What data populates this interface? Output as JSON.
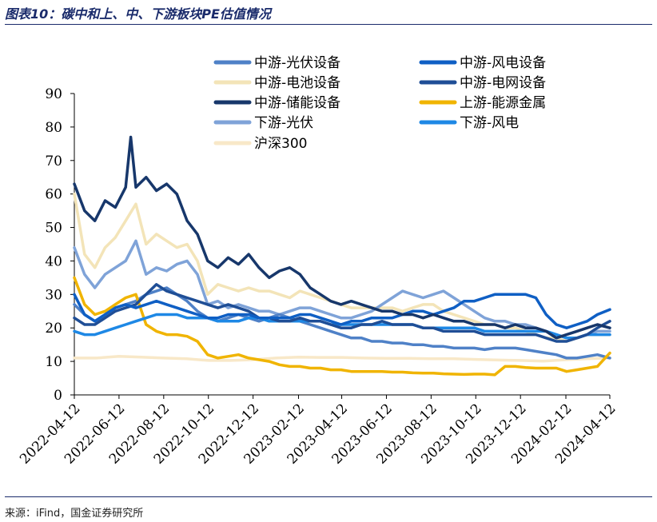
{
  "header": {
    "title": "图表10：碳中和上、中、下游板块PE估值情况"
  },
  "footer": {
    "source": "来源：iFind，国金证券研究所"
  },
  "colors": {
    "midPV": "#4f81c7",
    "midWind": "#0f5fc4",
    "midBattery": "#f3e4b8",
    "midGrid": "#1f4e96",
    "midStorage": "#17376b",
    "upEnergyMetal": "#f0b400",
    "downPV": "#7fa3d8",
    "downWind": "#1e88e5",
    "hs300": "#f8e8c8"
  },
  "chart_data": {
    "type": "line",
    "title": "碳中和上、中、下游板块PE估值情况",
    "xlabel": "",
    "ylabel": "",
    "ylim": [
      0,
      90
    ],
    "yticks": [
      "0",
      "10",
      "20",
      "30",
      "40",
      "50",
      "60",
      "70",
      "80",
      "90"
    ],
    "xlim": [
      "2022-04-12",
      "2024-04-12"
    ],
    "xticks": [
      "2022-04-12",
      "2022-06-12",
      "2022-08-12",
      "2022-10-12",
      "2022-12-12",
      "2023-02-12",
      "2023-04-12",
      "2023-06-12",
      "2023-08-12",
      "2023-10-12",
      "2023-12-12",
      "2024-02-12",
      "2024-04-12"
    ],
    "grid": false,
    "legend_position": "top",
    "series": [
      {
        "name": "中游-光伏设备",
        "color": "#4f81c7",
        "width": 3.5,
        "x": [
          "2022-04-12",
          "2022-04-26",
          "2022-05-10",
          "2022-05-24",
          "2022-06-07",
          "2022-06-21",
          "2022-07-05",
          "2022-07-19",
          "2022-08-02",
          "2022-08-16",
          "2022-08-30",
          "2022-09-13",
          "2022-09-27",
          "2022-10-11",
          "2022-10-25",
          "2022-11-08",
          "2022-11-22",
          "2022-12-06",
          "2022-12-20",
          "2023-01-03",
          "2023-01-17",
          "2023-01-31",
          "2023-02-14",
          "2023-02-28",
          "2023-03-14",
          "2023-03-28",
          "2023-04-11",
          "2023-04-25",
          "2023-05-09",
          "2023-05-23",
          "2023-06-06",
          "2023-06-20",
          "2023-07-04",
          "2023-07-18",
          "2023-08-01",
          "2023-08-15",
          "2023-08-29",
          "2023-09-12",
          "2023-09-26",
          "2023-10-10",
          "2023-10-24",
          "2023-11-07",
          "2023-11-21",
          "2023-12-05",
          "2023-12-19",
          "2024-01-02",
          "2024-01-16",
          "2024-01-30",
          "2024-02-13",
          "2024-02-27",
          "2024-03-12",
          "2024-03-26",
          "2024-04-12"
        ],
        "values": [
          27,
          24,
          22,
          24,
          26,
          27,
          28,
          30,
          31,
          32,
          30,
          28,
          25,
          23,
          22,
          23,
          24,
          23,
          22,
          23,
          24,
          23,
          22,
          21,
          20,
          19,
          18,
          17,
          17,
          16,
          16,
          15.5,
          15.5,
          15,
          15,
          14.5,
          14.5,
          14,
          14,
          14,
          13.5,
          14,
          14,
          14,
          13.5,
          13,
          12.5,
          12,
          11,
          11,
          11.5,
          12,
          11
        ]
      },
      {
        "name": "中游-风电设备",
        "color": "#0f5fc4",
        "width": 3.5,
        "x": [
          "2022-04-12",
          "2022-04-26",
          "2022-05-10",
          "2022-05-24",
          "2022-06-07",
          "2022-06-21",
          "2022-07-05",
          "2022-07-19",
          "2022-08-02",
          "2022-08-16",
          "2022-08-30",
          "2022-09-13",
          "2022-09-27",
          "2022-10-11",
          "2022-10-25",
          "2022-11-08",
          "2022-11-22",
          "2022-12-06",
          "2022-12-20",
          "2023-01-03",
          "2023-01-17",
          "2023-01-31",
          "2023-02-14",
          "2023-02-28",
          "2023-03-14",
          "2023-03-28",
          "2023-04-11",
          "2023-04-25",
          "2023-05-09",
          "2023-05-23",
          "2023-06-06",
          "2023-06-20",
          "2023-07-04",
          "2023-07-18",
          "2023-08-01",
          "2023-08-15",
          "2023-08-29",
          "2023-09-12",
          "2023-09-26",
          "2023-10-10",
          "2023-10-24",
          "2023-11-07",
          "2023-11-21",
          "2023-12-05",
          "2023-12-19",
          "2024-01-02",
          "2024-01-16",
          "2024-01-30",
          "2024-02-13",
          "2024-02-27",
          "2024-03-12",
          "2024-03-26",
          "2024-04-12"
        ],
        "values": [
          30,
          24,
          22,
          24,
          26,
          27,
          26,
          27,
          28,
          27,
          26,
          25,
          24,
          23,
          23,
          24,
          24,
          24,
          23,
          23,
          23,
          23,
          24,
          24,
          23,
          22,
          21,
          22,
          22,
          23,
          23,
          23,
          24,
          25,
          25,
          24,
          25,
          26,
          28,
          28,
          29,
          30,
          30,
          30,
          30,
          29,
          24,
          21,
          20,
          21,
          22,
          24,
          25.5
        ]
      },
      {
        "name": "中游-电池设备",
        "color": "#f3e4b8",
        "width": 3.5,
        "x": [
          "2022-04-12",
          "2022-04-26",
          "2022-05-10",
          "2022-05-24",
          "2022-06-07",
          "2022-06-21",
          "2022-07-05",
          "2022-07-19",
          "2022-08-02",
          "2022-08-16",
          "2022-08-30",
          "2022-09-13",
          "2022-09-27",
          "2022-10-11",
          "2022-10-25",
          "2022-11-08",
          "2022-11-22",
          "2022-12-06",
          "2022-12-20",
          "2023-01-03",
          "2023-01-17",
          "2023-01-31",
          "2023-02-14",
          "2023-02-28",
          "2023-03-14",
          "2023-03-28",
          "2023-04-11",
          "2023-04-25",
          "2023-05-09",
          "2023-05-23",
          "2023-06-06",
          "2023-06-20",
          "2023-07-04",
          "2023-07-18",
          "2023-08-01",
          "2023-08-15",
          "2023-08-29",
          "2023-09-12",
          "2023-09-26",
          "2023-10-10",
          "2023-10-24",
          "2023-11-07",
          "2023-11-21",
          "2023-12-05",
          "2023-12-19",
          "2024-01-02",
          "2024-01-16",
          "2024-01-30",
          "2024-02-13",
          "2024-02-27",
          "2024-03-12",
          "2024-03-26",
          "2024-04-12"
        ],
        "values": [
          60,
          42,
          38,
          44,
          47,
          52,
          57,
          45,
          48,
          46,
          44,
          45,
          40,
          30,
          33,
          32,
          31,
          32,
          31,
          31,
          30,
          29,
          31,
          30,
          29,
          28,
          27,
          26,
          26,
          26,
          26,
          26,
          25,
          26,
          27,
          27,
          25,
          24,
          23,
          22,
          21,
          21,
          20,
          20,
          19,
          18,
          17,
          17,
          16,
          17,
          18,
          18,
          18
        ]
      },
      {
        "name": "中游-电网设备",
        "color": "#1f4e96",
        "width": 3.5,
        "x": [
          "2022-04-12",
          "2022-04-26",
          "2022-05-10",
          "2022-05-24",
          "2022-06-07",
          "2022-06-21",
          "2022-07-05",
          "2022-07-19",
          "2022-08-02",
          "2022-08-16",
          "2022-08-30",
          "2022-09-13",
          "2022-09-27",
          "2022-10-11",
          "2022-10-25",
          "2022-11-08",
          "2022-11-22",
          "2022-12-06",
          "2022-12-20",
          "2023-01-03",
          "2023-01-17",
          "2023-01-31",
          "2023-02-14",
          "2023-02-28",
          "2023-03-14",
          "2023-03-28",
          "2023-04-11",
          "2023-04-25",
          "2023-05-09",
          "2023-05-23",
          "2023-06-06",
          "2023-06-20",
          "2023-07-04",
          "2023-07-18",
          "2023-08-01",
          "2023-08-15",
          "2023-08-29",
          "2023-09-12",
          "2023-09-26",
          "2023-10-10",
          "2023-10-24",
          "2023-11-07",
          "2023-11-21",
          "2023-12-05",
          "2023-12-19",
          "2024-01-02",
          "2024-01-16",
          "2024-01-30",
          "2024-02-13",
          "2024-02-27",
          "2024-03-12",
          "2024-03-26",
          "2024-04-12"
        ],
        "values": [
          23,
          21,
          21,
          23,
          25,
          26,
          27,
          30,
          33,
          31,
          30,
          29,
          28,
          27,
          26,
          27,
          26,
          25,
          23,
          23,
          22,
          22,
          23,
          22,
          22,
          21,
          20,
          20,
          21,
          21,
          22,
          21,
          21,
          21,
          20,
          20,
          19,
          19,
          19,
          19,
          18,
          18,
          18,
          18,
          18,
          18,
          17,
          16,
          16,
          17,
          18,
          20,
          22
        ]
      },
      {
        "name": "中游-储能设备",
        "color": "#17376b",
        "width": 3.5,
        "x": [
          "2022-04-12",
          "2022-04-26",
          "2022-05-10",
          "2022-05-24",
          "2022-06-07",
          "2022-06-21",
          "2022-06-28",
          "2022-07-05",
          "2022-07-19",
          "2022-08-02",
          "2022-08-16",
          "2022-08-30",
          "2022-09-13",
          "2022-09-27",
          "2022-10-11",
          "2022-10-25",
          "2022-11-08",
          "2022-11-22",
          "2022-12-06",
          "2022-12-20",
          "2023-01-03",
          "2023-01-17",
          "2023-01-31",
          "2023-02-14",
          "2023-02-28",
          "2023-03-14",
          "2023-03-28",
          "2023-04-11",
          "2023-04-25",
          "2023-05-09",
          "2023-05-23",
          "2023-06-06",
          "2023-06-20",
          "2023-07-04",
          "2023-07-18",
          "2023-08-01",
          "2023-08-15",
          "2023-08-29",
          "2023-09-12",
          "2023-09-26",
          "2023-10-10",
          "2023-10-24",
          "2023-11-07",
          "2023-11-21",
          "2023-12-05",
          "2023-12-19",
          "2024-01-02",
          "2024-01-16",
          "2024-01-30",
          "2024-02-13",
          "2024-02-27",
          "2024-03-12",
          "2024-03-26",
          "2024-04-12"
        ],
        "values": [
          63,
          55,
          52,
          58,
          56,
          62,
          77,
          62,
          65,
          61,
          63,
          60,
          52,
          48,
          40,
          38,
          41,
          39,
          42,
          38,
          35,
          37,
          38,
          36,
          32,
          30,
          28,
          27,
          28,
          27,
          26,
          25,
          25,
          24,
          24,
          23,
          24,
          23,
          22,
          22,
          21,
          21,
          21,
          20,
          21,
          20,
          20,
          19,
          17,
          18,
          19,
          20,
          21,
          20
        ]
      },
      {
        "name": "上游-能源金属",
        "color": "#f0b400",
        "width": 3.5,
        "x": [
          "2022-04-12",
          "2022-04-26",
          "2022-05-10",
          "2022-05-24",
          "2022-06-07",
          "2022-06-21",
          "2022-07-05",
          "2022-07-19",
          "2022-08-02",
          "2022-08-16",
          "2022-08-30",
          "2022-09-13",
          "2022-09-27",
          "2022-10-11",
          "2022-10-25",
          "2022-11-08",
          "2022-11-22",
          "2022-12-06",
          "2022-12-20",
          "2023-01-03",
          "2023-01-17",
          "2023-01-31",
          "2023-02-14",
          "2023-02-28",
          "2023-03-14",
          "2023-03-28",
          "2023-04-11",
          "2023-04-25",
          "2023-05-09",
          "2023-05-23",
          "2023-06-06",
          "2023-06-20",
          "2023-07-04",
          "2023-07-18",
          "2023-08-01",
          "2023-08-15",
          "2023-08-29",
          "2023-09-12",
          "2023-09-26",
          "2023-10-10",
          "2023-10-24",
          "2023-11-07",
          "2023-11-21",
          "2023-12-05",
          "2023-12-19",
          "2024-01-02",
          "2024-01-16",
          "2024-01-30",
          "2024-02-13",
          "2024-02-27",
          "2024-03-12",
          "2024-03-26",
          "2024-04-12"
        ],
        "values": [
          35,
          27,
          24,
          25,
          27,
          29,
          30,
          21,
          19,
          18,
          18,
          17.5,
          16,
          12,
          11,
          11.5,
          12,
          11,
          10.5,
          10,
          9,
          8.5,
          8.5,
          8,
          8,
          7.5,
          7.5,
          7,
          7,
          7,
          7,
          6.8,
          6.8,
          6.6,
          6.5,
          6.5,
          6.3,
          6.2,
          6.1,
          6.2,
          6.2,
          6,
          8.5,
          8.5,
          8.2,
          8,
          8,
          8,
          7,
          7.5,
          8,
          8.5,
          12.5
        ]
      },
      {
        "name": "下游-光伏",
        "color": "#7fa3d8",
        "width": 3.5,
        "x": [
          "2022-04-12",
          "2022-04-26",
          "2022-05-10",
          "2022-05-24",
          "2022-06-07",
          "2022-06-21",
          "2022-07-05",
          "2022-07-19",
          "2022-08-02",
          "2022-08-16",
          "2022-08-30",
          "2022-09-13",
          "2022-09-27",
          "2022-10-11",
          "2022-10-25",
          "2022-11-08",
          "2022-11-22",
          "2022-12-06",
          "2022-12-20",
          "2023-01-03",
          "2023-01-17",
          "2023-01-31",
          "2023-02-14",
          "2023-02-28",
          "2023-03-14",
          "2023-03-28",
          "2023-04-11",
          "2023-04-25",
          "2023-05-09",
          "2023-05-23",
          "2023-06-06",
          "2023-06-20",
          "2023-07-04",
          "2023-07-18",
          "2023-08-01",
          "2023-08-15",
          "2023-08-29",
          "2023-09-12",
          "2023-09-26",
          "2023-10-10",
          "2023-10-24",
          "2023-11-07",
          "2023-11-21",
          "2023-12-05",
          "2023-12-19",
          "2024-01-02",
          "2024-01-16",
          "2024-01-30",
          "2024-02-13",
          "2024-02-27",
          "2024-03-12",
          "2024-03-26",
          "2024-04-12"
        ],
        "values": [
          44,
          36,
          32,
          36,
          38,
          40,
          46,
          36,
          38,
          37,
          39,
          40,
          36,
          27,
          28,
          26,
          27,
          26,
          25,
          25,
          24,
          25,
          26,
          26,
          25,
          24,
          23,
          23,
          24,
          25,
          27,
          29,
          31,
          30,
          29,
          30,
          31,
          29,
          27,
          25,
          23,
          22,
          22,
          21,
          21,
          20,
          19,
          18,
          17,
          17,
          18,
          19,
          19
        ]
      },
      {
        "name": "下游-风电",
        "color": "#1e88e5",
        "width": 3.5,
        "x": [
          "2022-04-12",
          "2022-04-26",
          "2022-05-10",
          "2022-05-24",
          "2022-06-07",
          "2022-06-21",
          "2022-07-05",
          "2022-07-19",
          "2022-08-02",
          "2022-08-16",
          "2022-08-30",
          "2022-09-13",
          "2022-09-27",
          "2022-10-11",
          "2022-10-25",
          "2022-11-08",
          "2022-11-22",
          "2022-12-06",
          "2022-12-20",
          "2023-01-03",
          "2023-01-17",
          "2023-01-31",
          "2023-02-14",
          "2023-02-28",
          "2023-03-14",
          "2023-03-28",
          "2023-04-11",
          "2023-04-25",
          "2023-05-09",
          "2023-05-23",
          "2023-06-06",
          "2023-06-20",
          "2023-07-04",
          "2023-07-18",
          "2023-08-01",
          "2023-08-15",
          "2023-08-29",
          "2023-09-12",
          "2023-09-26",
          "2023-10-10",
          "2023-10-24",
          "2023-11-07",
          "2023-11-21",
          "2023-12-05",
          "2023-12-19",
          "2024-01-02",
          "2024-01-16",
          "2024-01-30",
          "2024-02-13",
          "2024-02-27",
          "2024-03-12",
          "2024-03-26",
          "2024-04-12"
        ],
        "values": [
          19,
          18,
          18,
          19,
          20,
          21,
          22,
          23,
          24,
          24,
          24,
          23,
          23,
          23,
          22,
          22,
          22,
          23,
          23,
          22,
          22,
          22,
          22,
          22,
          22,
          21,
          21,
          21,
          21,
          21,
          21,
          21,
          21,
          21,
          20,
          20,
          20,
          20,
          20,
          20,
          19,
          19,
          19,
          19,
          19,
          19,
          19,
          18,
          17,
          17,
          18,
          18,
          18
        ]
      },
      {
        "name": "沪深300",
        "color": "#f8e8c8",
        "width": 3.5,
        "x": [
          "2022-04-12",
          "2022-05-12",
          "2022-06-12",
          "2022-07-12",
          "2022-08-12",
          "2022-09-12",
          "2022-10-12",
          "2022-11-12",
          "2022-12-12",
          "2023-01-12",
          "2023-02-12",
          "2023-03-12",
          "2023-04-12",
          "2023-05-12",
          "2023-06-12",
          "2023-07-12",
          "2023-08-12",
          "2023-09-12",
          "2023-10-12",
          "2023-11-12",
          "2023-12-12",
          "2024-01-12",
          "2024-02-12",
          "2024-03-12",
          "2024-04-12"
        ],
        "values": [
          11,
          11,
          11.5,
          11.3,
          11,
          10.8,
          10.3,
          10.3,
          10.5,
          11,
          11.3,
          11.2,
          11.2,
          11,
          10.9,
          10.9,
          10.8,
          10.8,
          10.6,
          10.4,
          10.3,
          10.1,
          10.5,
          10.8,
          11
        ]
      }
    ]
  }
}
